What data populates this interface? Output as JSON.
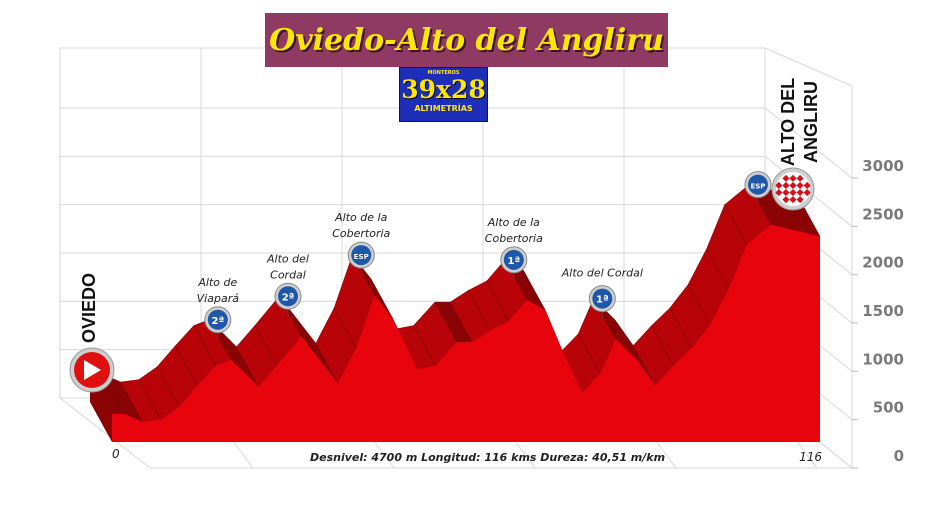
{
  "header": {
    "title": "Oviedo-Alto del Angliru",
    "logo": {
      "small_text": "MONTEROS",
      "main_text": "39x28",
      "bottom_text": "ALTIMETRÍAS"
    }
  },
  "colors": {
    "profile": "#e8040c",
    "profile_dark": "#8a0406",
    "title_bg": "#8e3a63",
    "title_text": "#ffe800",
    "badge_blue": "#1f58a8"
  },
  "chart_data": {
    "type": "area",
    "title": "Oviedo-Alto del Angliru",
    "y_ticks": [
      "0",
      "500",
      "1000",
      "1500",
      "2000",
      "2500",
      "3000"
    ],
    "ylim": [
      0,
      3000
    ],
    "xlim": [
      0,
      116
    ],
    "x_start_label": "0",
    "x_end_label": "116",
    "grid": true,
    "stats_text": "Desnivel: 4700 m  Longitud:   116 kms   Dureza:   40,51 m/km",
    "profile": [
      {
        "km": 0,
        "alt": 240
      },
      {
        "km": 2,
        "alt": 240
      },
      {
        "km": 5,
        "alt": 170
      },
      {
        "km": 8,
        "alt": 190
      },
      {
        "km": 11,
        "alt": 300
      },
      {
        "km": 14,
        "alt": 480
      },
      {
        "km": 17,
        "alt": 650
      },
      {
        "km": 19.5,
        "alt": 700
      },
      {
        "km": 21.5,
        "alt": 600
      },
      {
        "km": 24,
        "alt": 470
      },
      {
        "km": 27,
        "alt": 650
      },
      {
        "km": 31,
        "alt": 900
      },
      {
        "km": 34,
        "alt": 700
      },
      {
        "km": 37,
        "alt": 500
      },
      {
        "km": 40,
        "alt": 800
      },
      {
        "km": 43,
        "alt": 1250
      },
      {
        "km": 46,
        "alt": 1050
      },
      {
        "km": 50,
        "alt": 620
      },
      {
        "km": 53,
        "alt": 650
      },
      {
        "km": 56.5,
        "alt": 850
      },
      {
        "km": 59,
        "alt": 850
      },
      {
        "km": 62,
        "alt": 950
      },
      {
        "km": 65,
        "alt": 1030
      },
      {
        "km": 68,
        "alt": 1210
      },
      {
        "km": 71,
        "alt": 1120
      },
      {
        "km": 74,
        "alt": 750
      },
      {
        "km": 77,
        "alt": 420
      },
      {
        "km": 80,
        "alt": 580
      },
      {
        "km": 82.5,
        "alt": 880
      },
      {
        "km": 86,
        "alt": 700
      },
      {
        "km": 89,
        "alt": 480
      },
      {
        "km": 92,
        "alt": 650
      },
      {
        "km": 95,
        "alt": 800
      },
      {
        "km": 98,
        "alt": 1000
      },
      {
        "km": 101,
        "alt": 1300
      },
      {
        "km": 104,
        "alt": 1680
      },
      {
        "km": 108,
        "alt": 1850
      },
      {
        "km": 116,
        "alt": 1750
      }
    ],
    "climbs": [
      {
        "name": "Alto de Viapará",
        "line1": "Alto de",
        "line2": "Viapará",
        "category": "2ª",
        "km": 19.5,
        "alt": 700
      },
      {
        "name": "Alto del Cordal",
        "line1": "Alto del",
        "line2": "Cordal",
        "category": "2ª",
        "km": 31,
        "alt": 900
      },
      {
        "name": "Alto de la Cobertoria",
        "line1": "Alto de la",
        "line2": "Cobertoria",
        "category": "ESP",
        "km": 43,
        "alt": 1250
      },
      {
        "name": "Alto de la Cobertoria",
        "line1": "Alto de la",
        "line2": "Cobertoria",
        "category": "1ª",
        "km": 68,
        "alt": 1210
      },
      {
        "name": "Alto del Cordal",
        "line1": "Alto del Cordal",
        "line2": "",
        "category": "1ª",
        "km": 82.5,
        "alt": 880
      },
      {
        "name": "Alto del Angliru",
        "line1": "",
        "line2": "",
        "category": "ESP",
        "km": 108,
        "alt": 1850
      }
    ],
    "start": {
      "name": "OVIEDO"
    },
    "finish": {
      "line1": "ALTO DEL",
      "line2": "ANGLIRU"
    }
  }
}
